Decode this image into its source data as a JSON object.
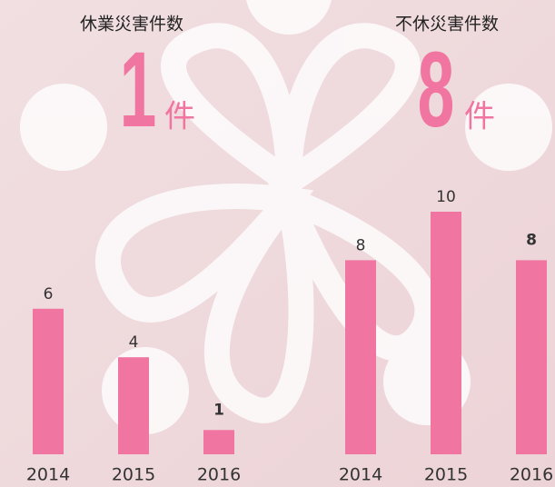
{
  "chart_data": [
    {
      "type": "bar",
      "title": "休業災害件数",
      "headline_value": 1,
      "headline_unit": "件",
      "categories": [
        "2014",
        "2015",
        "2016"
      ],
      "values": [
        6,
        4,
        1
      ],
      "color": "#f075a0"
    },
    {
      "type": "bar",
      "title": "不休災害件数",
      "headline_value": 8,
      "headline_unit": "件",
      "categories": [
        "2014",
        "2015",
        "2016"
      ],
      "values": [
        8,
        10,
        8
      ],
      "color": "#f075a0"
    }
  ]
}
